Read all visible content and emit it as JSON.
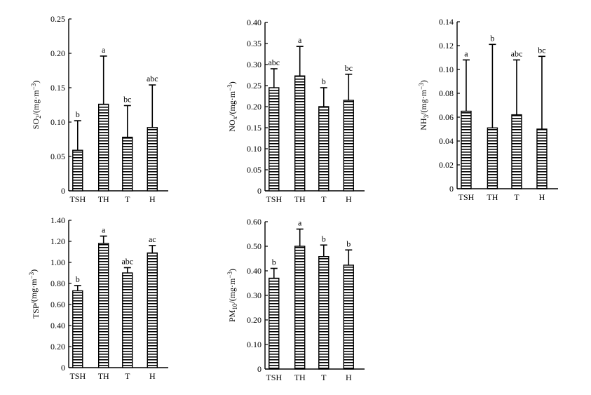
{
  "chart_data": [
    {
      "type": "bar",
      "categories": [
        "TSH",
        "TH",
        "T",
        "H"
      ],
      "values": [
        0.059,
        0.126,
        0.078,
        0.092
      ],
      "errors": [
        0.102,
        0.196,
        0.124,
        0.154
      ],
      "labels": [
        "b",
        "a",
        "bc",
        "abc"
      ],
      "ylabel": {
        "main": "SO",
        "sub": "2",
        "rest": "/(mg·m",
        "sup": "−3",
        "end": ")"
      },
      "ylim": [
        0,
        0.25
      ],
      "yticks": [
        0,
        0.05,
        0.1,
        0.15,
        0.2,
        0.25
      ],
      "yticklabels": [
        "0",
        "0.05",
        "0.10",
        "0.15",
        "0.20",
        "0.25"
      ]
    },
    {
      "type": "bar",
      "categories": [
        "TSH",
        "TH",
        "T",
        "H"
      ],
      "values": [
        0.245,
        0.273,
        0.2,
        0.215
      ],
      "errors": [
        0.29,
        0.343,
        0.245,
        0.277
      ],
      "labels": [
        "abc",
        "a",
        "b",
        "bc"
      ],
      "ylabel": {
        "main": "NO",
        "sub": "x",
        "rest": "/(mg·m",
        "sup": "−3",
        "end": ")"
      },
      "ylim": [
        0,
        0.4
      ],
      "yticks": [
        0,
        0.05,
        0.1,
        0.15,
        0.2,
        0.25,
        0.3,
        0.35,
        0.4
      ],
      "yticklabels": [
        "0",
        "0.05",
        "0.10",
        "0.15",
        "0.20",
        "0.25",
        "0.30",
        "0.35",
        "0.40"
      ]
    },
    {
      "type": "bar",
      "categories": [
        "TSH",
        "TH",
        "T",
        "H"
      ],
      "values": [
        0.065,
        0.051,
        0.062,
        0.05
      ],
      "errors": [
        0.108,
        0.121,
        0.108,
        0.111
      ],
      "labels": [
        "a",
        "b",
        "abc",
        "bc"
      ],
      "ylabel": {
        "main": "NH",
        "sub": "3",
        "rest": "/(mg·m",
        "sup": "−3",
        "end": ")"
      },
      "ylim": [
        0,
        0.14
      ],
      "yticks": [
        0,
        0.02,
        0.04,
        0.06,
        0.08,
        0.1,
        0.12,
        0.14
      ],
      "yticklabels": [
        "0",
        "0.02",
        "0.04",
        "0.06",
        "0.08",
        "0.10",
        "0.12",
        "0.14"
      ]
    },
    {
      "type": "bar",
      "categories": [
        "TSH",
        "TH",
        "T",
        "H"
      ],
      "values": [
        0.73,
        1.18,
        0.9,
        1.09
      ],
      "errors": [
        0.78,
        1.25,
        0.95,
        1.16
      ],
      "labels": [
        "b",
        "a",
        "abc",
        "ac"
      ],
      "ylabel": {
        "main": "TSP",
        "sub": "",
        "rest": "/(mg·m",
        "sup": "−3",
        "end": ")"
      },
      "ylim": [
        0,
        1.4
      ],
      "yticks": [
        0,
        0.2,
        0.4,
        0.6,
        0.8,
        1.0,
        1.2,
        1.4
      ],
      "yticklabels": [
        "0",
        "0.20",
        "0.40",
        "0.60",
        "0.80",
        "1.00",
        "1.20",
        "1.40"
      ]
    },
    {
      "type": "bar",
      "categories": [
        "TSH",
        "TH",
        "T",
        "H"
      ],
      "values": [
        0.37,
        0.5,
        0.458,
        0.423
      ],
      "errors": [
        0.41,
        0.57,
        0.505,
        0.485
      ],
      "labels": [
        "b",
        "a",
        "b",
        "b"
      ],
      "ylabel": {
        "main": "PM",
        "sub": "10",
        "rest": "/(mg·m",
        "sup": "−3",
        "end": ")"
      },
      "ylim": [
        0,
        0.6
      ],
      "yticks": [
        0,
        0.1,
        0.2,
        0.3,
        0.4,
        0.5,
        0.6
      ],
      "yticklabels": [
        "0",
        "0.10",
        "0.20",
        "0.30",
        "0.40",
        "0.50",
        "0.60"
      ]
    }
  ]
}
